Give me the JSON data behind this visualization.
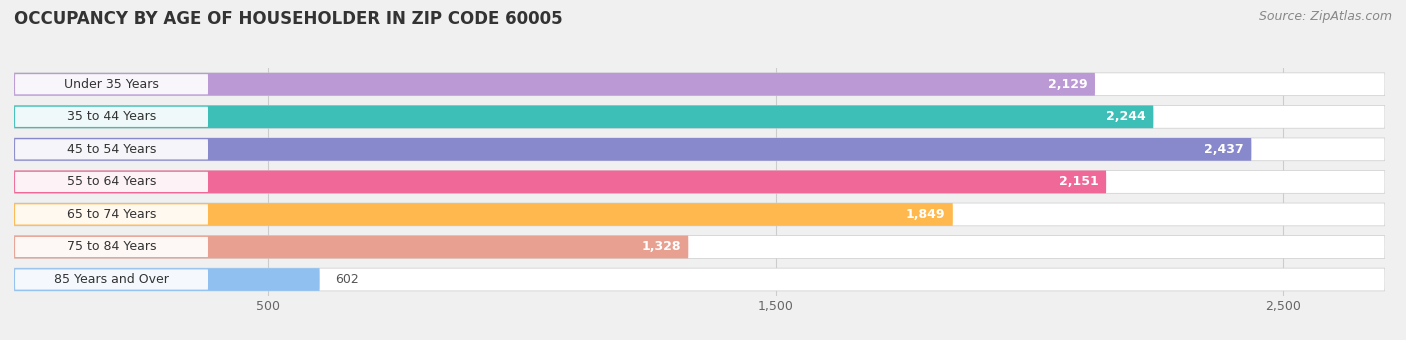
{
  "title": "OCCUPANCY BY AGE OF HOUSEHOLDER IN ZIP CODE 60005",
  "source": "Source: ZipAtlas.com",
  "categories": [
    "Under 35 Years",
    "35 to 44 Years",
    "45 to 54 Years",
    "55 to 64 Years",
    "65 to 74 Years",
    "75 to 84 Years",
    "85 Years and Over"
  ],
  "values": [
    2129,
    2244,
    2437,
    2151,
    1849,
    1328,
    602
  ],
  "bar_colors": [
    "#bb99d4",
    "#3dbfb8",
    "#8888cc",
    "#f06898",
    "#ffb84d",
    "#e8a090",
    "#90c0f0"
  ],
  "xlim": [
    0,
    2700
  ],
  "xticks": [
    500,
    1500,
    2500
  ],
  "xtick_labels": [
    "500",
    "1,500",
    "2,500"
  ],
  "title_fontsize": 12,
  "source_fontsize": 9,
  "background_color": "#f0f0f0",
  "bar_bg_color": "#e0e0e0"
}
